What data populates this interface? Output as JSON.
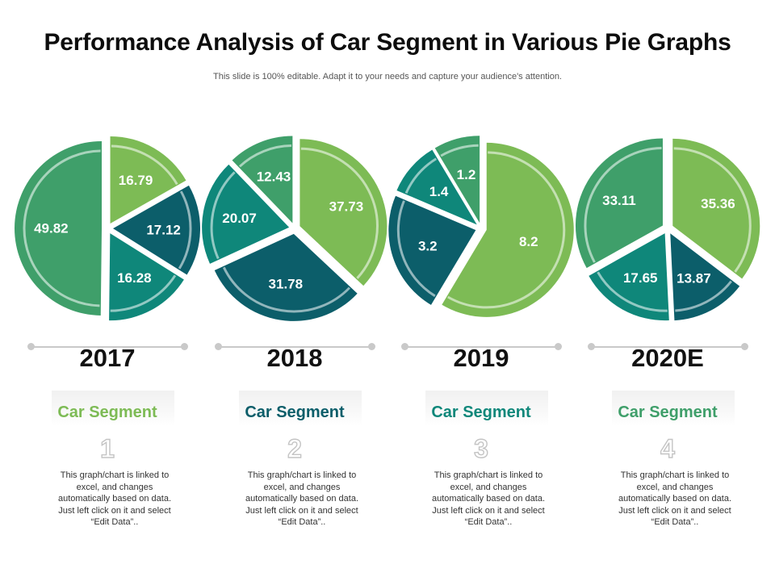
{
  "title": "Performance Analysis of Car Segment in Various Pie Graphs",
  "subtitle": "This slide is 100% editable. Adapt it to your needs and capture your audience's attention.",
  "colors": {
    "light_green": "#7dbb55",
    "dark_teal": "#0c5e6a",
    "teal": "#0f877a",
    "medium_green": "#3f9f6a"
  },
  "chart_data": [
    {
      "type": "pie",
      "title": "2017",
      "values": [
        16.79,
        17.12,
        16.28,
        49.82
      ],
      "colors": [
        "#7dbb55",
        "#0c5e6a",
        "#0f877a",
        "#3f9f6a"
      ]
    },
    {
      "type": "pie",
      "title": "2018",
      "values": [
        37.73,
        31.78,
        20.07,
        12.43
      ],
      "colors": [
        "#7dbb55",
        "#0c5e6a",
        "#0f877a",
        "#3f9f6a"
      ]
    },
    {
      "type": "pie",
      "title": "2019",
      "values": [
        8.2,
        3.2,
        1.4,
        1.2
      ],
      "colors": [
        "#7dbb55",
        "#0c5e6a",
        "#0f877a",
        "#3f9f6a"
      ]
    },
    {
      "type": "pie",
      "title": "2020E",
      "values": [
        35.36,
        13.87,
        17.65,
        33.11
      ],
      "colors": [
        "#7dbb55",
        "#0c5e6a",
        "#0f877a",
        "#3f9f6a"
      ]
    }
  ],
  "panels": [
    {
      "year": "2017",
      "segment_label": "Car Segment",
      "segment_color": "#7dbb55",
      "number": "1",
      "description": "This graph/chart is linked to excel, and changes automatically based on data. Just left click on it and select “Edit Data”.."
    },
    {
      "year": "2018",
      "segment_label": "Car Segment",
      "segment_color": "#0c5e6a",
      "number": "2",
      "description": "This graph/chart is linked to excel, and changes automatically based on data. Just left click on it and select “Edit Data”.."
    },
    {
      "year": "2019",
      "segment_label": "Car Segment",
      "segment_color": "#0f877a",
      "number": "3",
      "description": "This graph/chart is linked to excel, and changes automatically based on data. Just left click on it and select “Edit Data”.."
    },
    {
      "year": "2020E",
      "segment_label": "Car Segment",
      "segment_color": "#3f9f6a",
      "number": "4",
      "description": "This graph/chart is linked to excel, and changes automatically based on data. Just left click on it and select “Edit Data”.."
    }
  ]
}
